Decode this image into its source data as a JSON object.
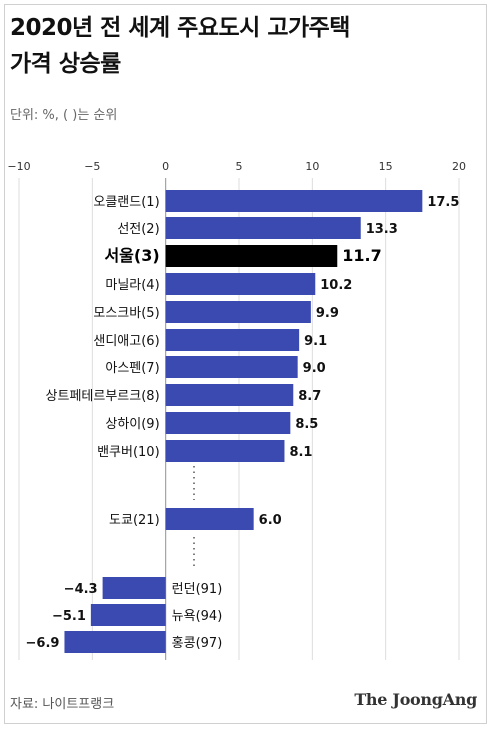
{
  "title_line1": "2020년 전 세계 주요도시 고가주택",
  "title_line2": "가격 상승률",
  "unit_note": "단위: %, ( )는 순위",
  "source": "자료: 나이트프랭크",
  "brand": "The JoongAng",
  "colors": {
    "bar": "#3b4ab0",
    "highlight": "#000000",
    "grid": "#dddddd"
  },
  "chart_data": {
    "type": "bar",
    "orientation": "horizontal",
    "xlim": [
      -10,
      20
    ],
    "xticks": [
      "−10",
      "−5",
      "0",
      "5",
      "10",
      "15",
      "20"
    ],
    "xtick_values": [
      -10,
      -5,
      0,
      5,
      10,
      15,
      20
    ],
    "categories": [
      "오클랜드(1)",
      "선전(2)",
      "서울(3)",
      "마닐라(4)",
      "모스크바(5)",
      "샌디애고(6)",
      "아스펜(7)",
      "상트페테르부르크(8)",
      "상하이(9)",
      "밴쿠버(10)",
      "도쿄(21)",
      "런던(91)",
      "뉴욕(94)",
      "홍콩(97)"
    ],
    "values": [
      17.5,
      13.3,
      11.7,
      10.2,
      9.9,
      9.1,
      9.0,
      8.7,
      8.5,
      8.1,
      6.0,
      -4.3,
      -5.1,
      -6.9
    ],
    "value_labels": [
      "17.5",
      "13.3",
      "11.7",
      "10.2",
      "9.9",
      "9.1",
      "9.0",
      "8.7",
      "8.5",
      "8.1",
      "6.0",
      "−4.3",
      "−5.1",
      "−6.9"
    ],
    "highlight": "서울(3)",
    "grid": true,
    "legend": "none"
  }
}
